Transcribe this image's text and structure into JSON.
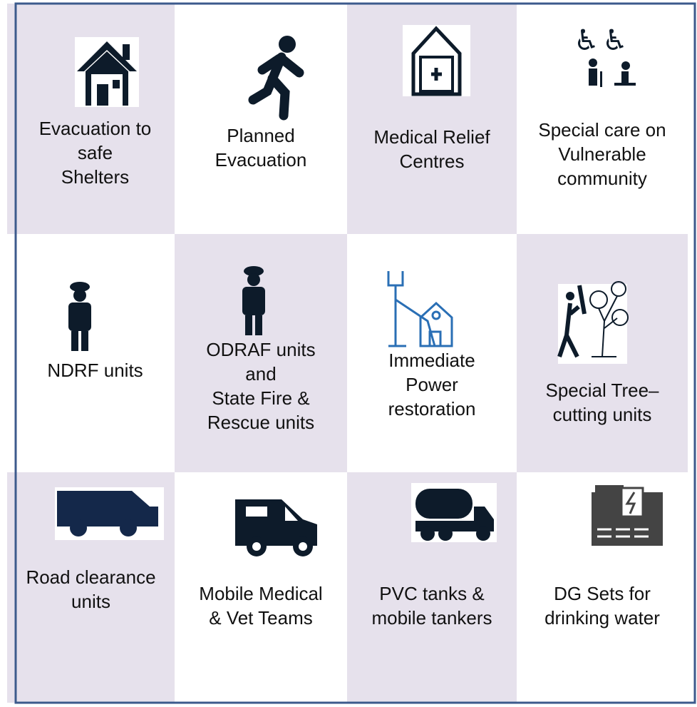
{
  "cells": [
    {
      "lines": [
        "Evacuation to",
        "safe",
        "Shelters"
      ]
    },
    {
      "lines": [
        "Planned",
        "Evacuation"
      ]
    },
    {
      "lines": [
        "Medical Relief",
        "Centres"
      ]
    },
    {
      "lines": [
        "Special care on",
        "Vulnerable",
        "community"
      ]
    },
    {
      "lines": [
        "NDRF units"
      ]
    },
    {
      "lines": [
        "ODRAF units",
        "and",
        "State Fire &",
        "Rescue units"
      ]
    },
    {
      "lines": [
        "Immediate",
        "Power",
        "restoration"
      ]
    },
    {
      "lines": [
        "Special Tree–",
        "cutting units"
      ]
    },
    {
      "lines": [
        "Road clearance",
        "units"
      ]
    },
    {
      "lines": [
        "Mobile Medical",
        "& Vet Teams"
      ]
    },
    {
      "lines": [
        "PVC tanks &",
        "mobile tankers"
      ]
    },
    {
      "lines": [
        "DG Sets for",
        "drinking water"
      ]
    }
  ]
}
